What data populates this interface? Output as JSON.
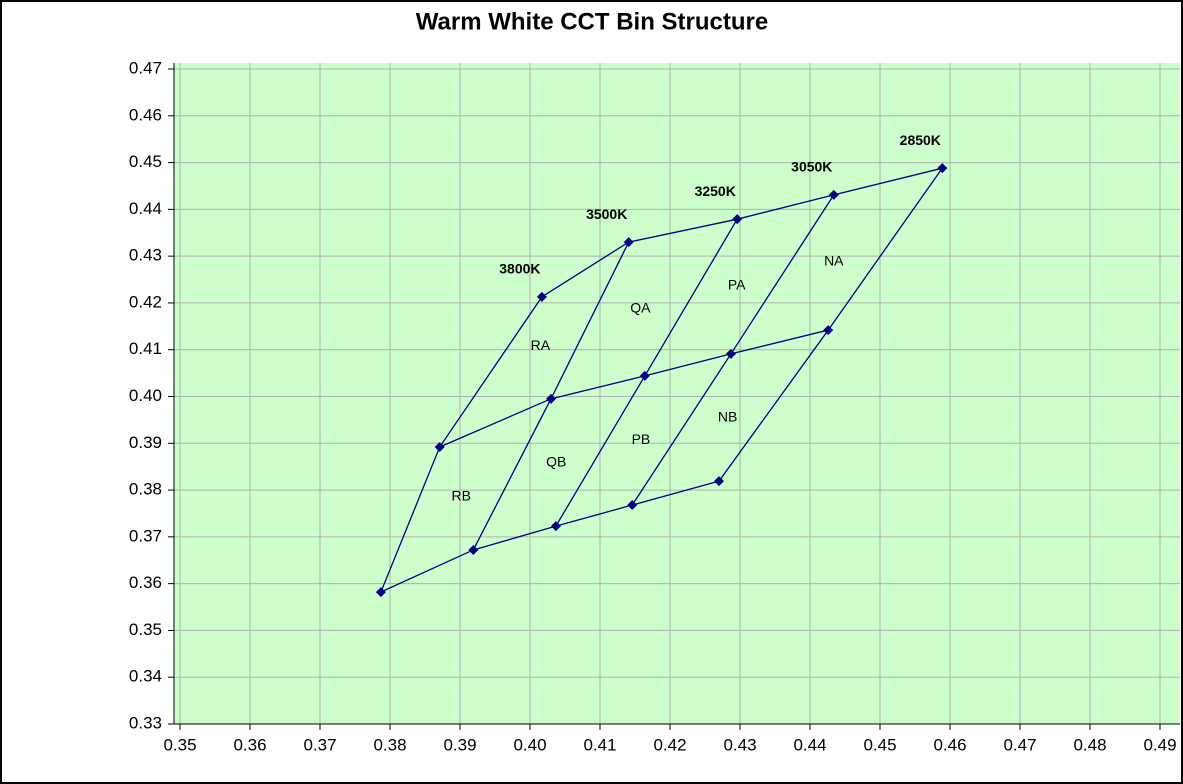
{
  "chart_data": {
    "type": "scatter",
    "title": "Warm White CCT Bin Structure",
    "color": "#000080",
    "rows": [
      {
        "x": [
          0.4017,
          0.4141,
          0.4296,
          0.4434,
          0.4589
        ],
        "y": [
          0.4213,
          0.433,
          0.4379,
          0.4431,
          0.4488
        ]
      },
      {
        "x": [
          0.3871,
          0.403,
          0.4164,
          0.4287,
          0.4426
        ],
        "y": [
          0.3892,
          0.3995,
          0.4044,
          0.4091,
          0.4142
        ]
      },
      {
        "x": [
          0.3787,
          0.3919,
          0.4037,
          0.4146,
          0.427
        ],
        "y": [
          0.3582,
          0.3672,
          0.3723,
          0.3768,
          0.3819
        ]
      }
    ],
    "point_labels": [
      "3800K",
      "3500K",
      "3250K",
      "3050K",
      "2850K"
    ],
    "regions": [
      [
        "RA",
        "QA",
        "PA",
        "NA"
      ],
      [
        "RB",
        "QB",
        "PB",
        "NB"
      ]
    ],
    "xlim": [
      0.35,
      0.49
    ],
    "ylim": [
      0.33,
      0.47
    ],
    "xticks": [
      0.35,
      0.36,
      0.37,
      0.38,
      0.39,
      {
        "value": 0.4,
        "label": "0.40"
      },
      0.41,
      0.42,
      0.43,
      0.44,
      0.45,
      0.46,
      0.47,
      0.48,
      0.49
    ],
    "yticks": [
      0.33,
      0.34,
      0.35,
      0.36,
      0.37,
      0.38,
      0.39,
      {
        "value": 0.4,
        "label": "0.40"
      },
      0.41,
      0.42,
      0.43,
      0.44,
      0.45,
      0.46,
      0.47
    ],
    "grid": true,
    "background": "#ccffcc"
  }
}
